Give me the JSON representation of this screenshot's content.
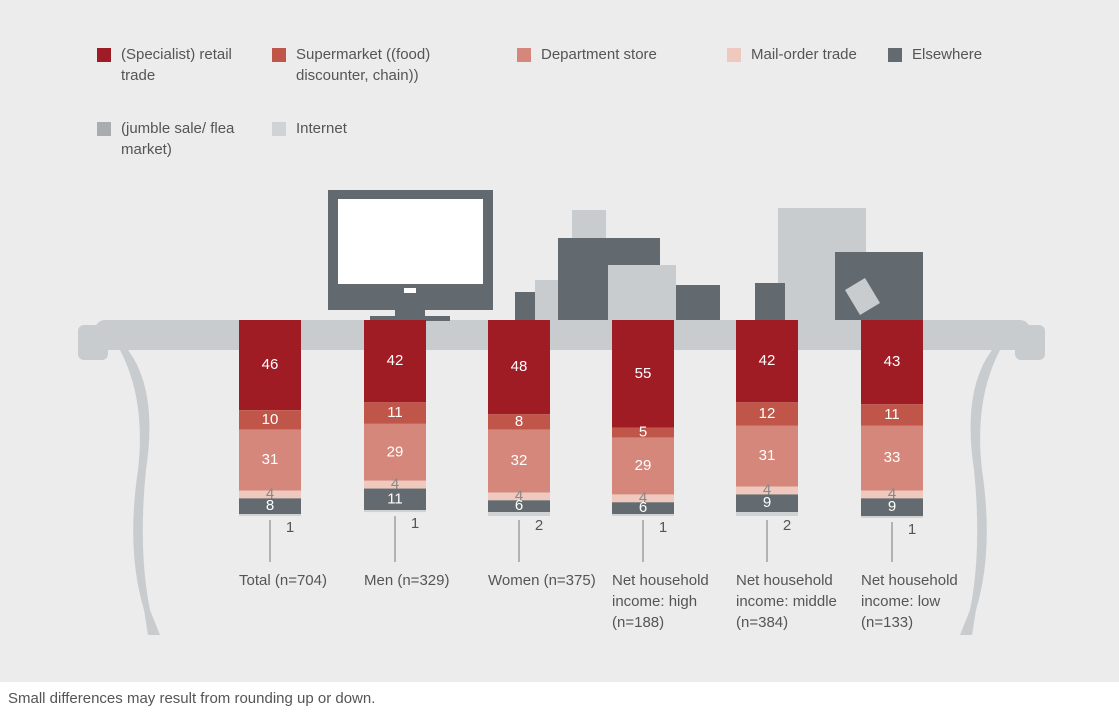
{
  "chart_data": {
    "type": "stacked-bar",
    "categories": [
      "Total (n=704)",
      "Men (n=329)",
      "Women (n=375)",
      "Net household income: high (n=188)",
      "Net household income: middle (n=384)",
      "Net household income: low (n=133)"
    ],
    "series": [
      {
        "name": "(Specialist) retail trade",
        "color": "#a01c25",
        "values": [
          46,
          42,
          48,
          55,
          42,
          43
        ]
      },
      {
        "name": "Supermarket ((food) discounter, chain))",
        "color": "#c0564a",
        "values": [
          10,
          11,
          8,
          5,
          12,
          11
        ]
      },
      {
        "name": "Department store",
        "color": "#d4877a",
        "values": [
          31,
          29,
          32,
          29,
          31,
          33
        ]
      },
      {
        "name": "Mail-order trade",
        "color": "#efc9bd",
        "values": [
          4,
          4,
          4,
          4,
          4,
          4
        ]
      },
      {
        "name": "Elsewhere",
        "color": "#636b70",
        "values": [
          8,
          11,
          6,
          6,
          9,
          9
        ]
      },
      {
        "name": "(jumble sale/ flea market)",
        "color": "#a9adb0",
        "values": [
          null,
          null,
          null,
          null,
          null,
          null
        ]
      },
      {
        "name": "Internet",
        "color": "#d0d3d5",
        "values": [
          1,
          1,
          2,
          1,
          2,
          1
        ]
      }
    ]
  },
  "footnote": "Small differences may result from rounding up or down."
}
